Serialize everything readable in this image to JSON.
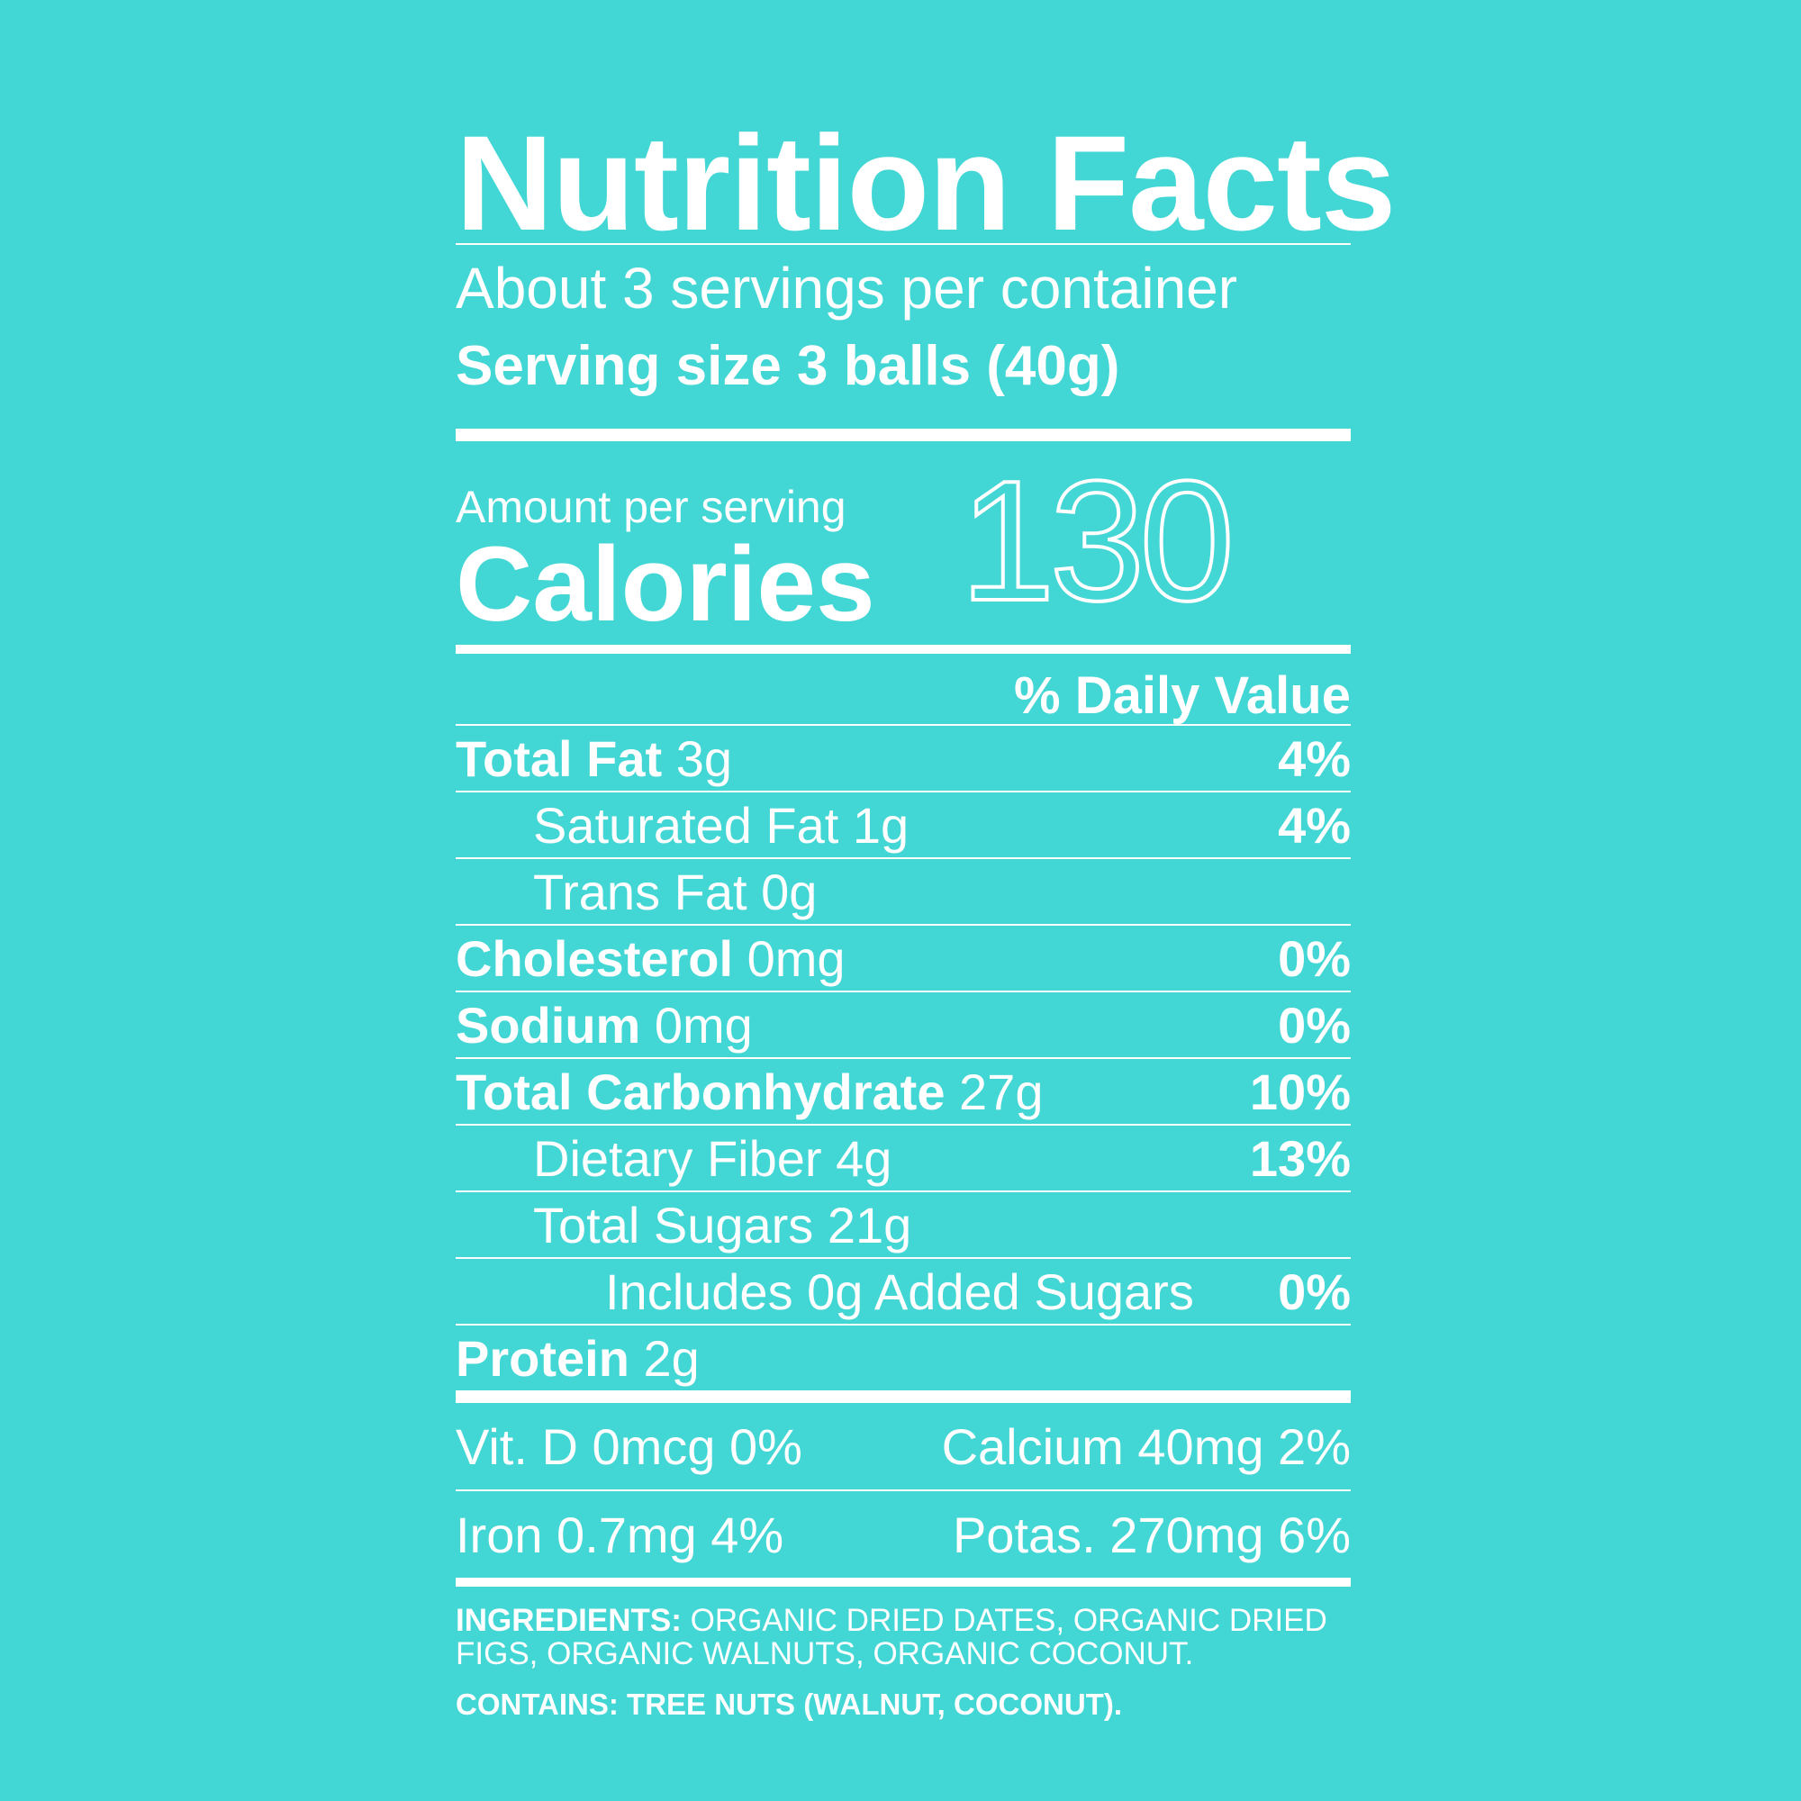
{
  "title": "Nutrition Facts",
  "servings_per_container": "About 3 servings per container",
  "serving_size": "Serving size 3 balls (40g)",
  "calories": {
    "amount_label": "Amount per serving",
    "label": "Calories",
    "value": "130"
  },
  "daily_value_header": "% Daily Value",
  "nutrients": [
    {
      "name": "Total Fat",
      "amount": "3g",
      "dv": "4%"
    },
    {
      "name": "Saturated Fat",
      "amount": "1g",
      "dv": "4%"
    },
    {
      "name": "Trans Fat",
      "amount": "0g",
      "dv": ""
    },
    {
      "name": "Cholesterol",
      "amount": "0mg",
      "dv": "0%"
    },
    {
      "name": "Sodium",
      "amount": "0mg",
      "dv": "0%"
    },
    {
      "name": "Total Carbonhydrate",
      "amount": "27g",
      "dv": "10%"
    },
    {
      "name": "Dietary Fiber",
      "amount": "4g",
      "dv": "13%"
    },
    {
      "name": "Total Sugars",
      "amount": "21g",
      "dv": ""
    },
    {
      "name": "Includes 0g Added Sugars",
      "amount": "",
      "dv": "0%"
    },
    {
      "name": "Protein",
      "amount": "2g",
      "dv": ""
    }
  ],
  "vitamins": [
    {
      "left": "Vit. D 0mcg 0%",
      "right": "Calcium 40mg 2%"
    },
    {
      "left": "Iron 0.7mg 4%",
      "right": "Potas. 270mg 6%"
    }
  ],
  "ingredients": {
    "label": "INGREDIENTS:",
    "text": "ORGANIC DRIED DATES, ORGANIC DRIED FIGS, ORGANIC WALNUTS, ORGANIC COCONUT."
  },
  "contains": "CONTAINS: TREE NUTS (WALNUT, COCONUT).",
  "colors": {
    "background": "#42d6d4",
    "foreground": "#ffffff"
  }
}
